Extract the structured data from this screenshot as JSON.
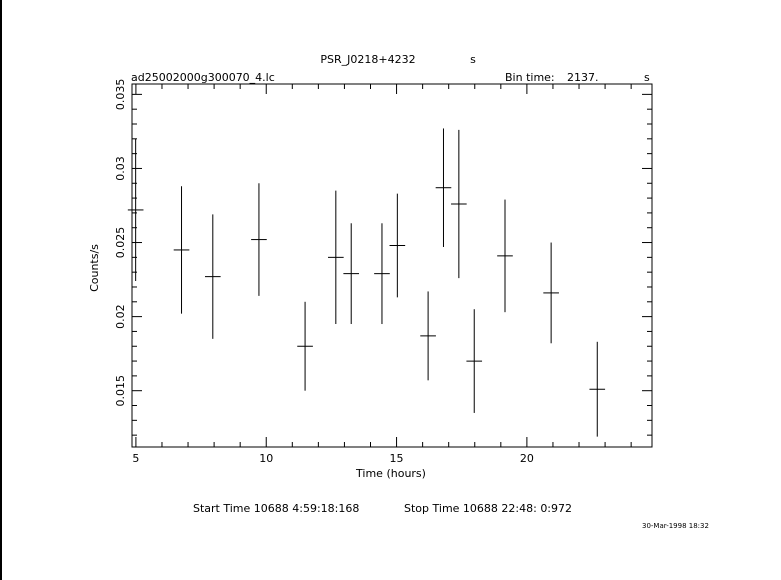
{
  "header": {
    "object": "PSR_J0218+4232",
    "object_unit": "s",
    "file": "ad25002000g300070_4.lc",
    "bin_label": "Bin time:",
    "bin_value": "2137.",
    "bin_unit": "s"
  },
  "footer": {
    "start": "Start Time 10688  4:59:18:168",
    "stop": "Stop Time 10688 22:48: 0:972",
    "stamp": "30-Mar-1998 18:32"
  },
  "chart_data": {
    "type": "scatter",
    "xlabel": "Time (hours)",
    "ylabel": "Counts/s",
    "xlim": [
      4.85,
      24.8
    ],
    "ylim": [
      0.0112,
      0.0357
    ],
    "xticks": [
      5,
      10,
      15,
      20
    ],
    "xtick_labels": [
      "5",
      "10",
      "15",
      "20"
    ],
    "yticks": [
      0.015,
      0.02,
      0.025,
      0.03,
      0.035
    ],
    "ytick_labels": [
      "0.015",
      "0.02",
      "0.025",
      "0.03",
      "0.035"
    ],
    "grid": false,
    "points": [
      {
        "x": 4.99,
        "xerr": 0.3,
        "y": 0.0272,
        "yerr": 0.0048
      },
      {
        "x": 6.75,
        "xerr": 0.3,
        "y": 0.0245,
        "yerr": 0.0043
      },
      {
        "x": 7.95,
        "xerr": 0.3,
        "y": 0.0227,
        "yerr": 0.0042
      },
      {
        "x": 9.72,
        "xerr": 0.3,
        "y": 0.0252,
        "yerr": 0.0038
      },
      {
        "x": 11.49,
        "xerr": 0.3,
        "y": 0.018,
        "yerr": 0.003
      },
      {
        "x": 12.67,
        "xerr": 0.3,
        "y": 0.024,
        "yerr": 0.0045
      },
      {
        "x": 13.26,
        "xerr": 0.3,
        "y": 0.0229,
        "yerr": 0.0034
      },
      {
        "x": 14.44,
        "xerr": 0.3,
        "y": 0.0229,
        "yerr": 0.0034
      },
      {
        "x": 15.03,
        "xerr": 0.3,
        "y": 0.0248,
        "yerr": 0.0035
      },
      {
        "x": 16.21,
        "xerr": 0.3,
        "y": 0.0187,
        "yerr": 0.003
      },
      {
        "x": 16.8,
        "xerr": 0.3,
        "y": 0.0287,
        "yerr": 0.004
      },
      {
        "x": 17.39,
        "xerr": 0.3,
        "y": 0.0276,
        "yerr": 0.005
      },
      {
        "x": 17.98,
        "xerr": 0.3,
        "y": 0.017,
        "yerr": 0.0035
      },
      {
        "x": 19.16,
        "xerr": 0.3,
        "y": 0.0241,
        "yerr": 0.0038
      },
      {
        "x": 20.93,
        "xerr": 0.3,
        "y": 0.0216,
        "yerr": 0.0034
      },
      {
        "x": 22.7,
        "xerr": 0.3,
        "y": 0.0151,
        "yerr": 0.0032
      }
    ]
  }
}
